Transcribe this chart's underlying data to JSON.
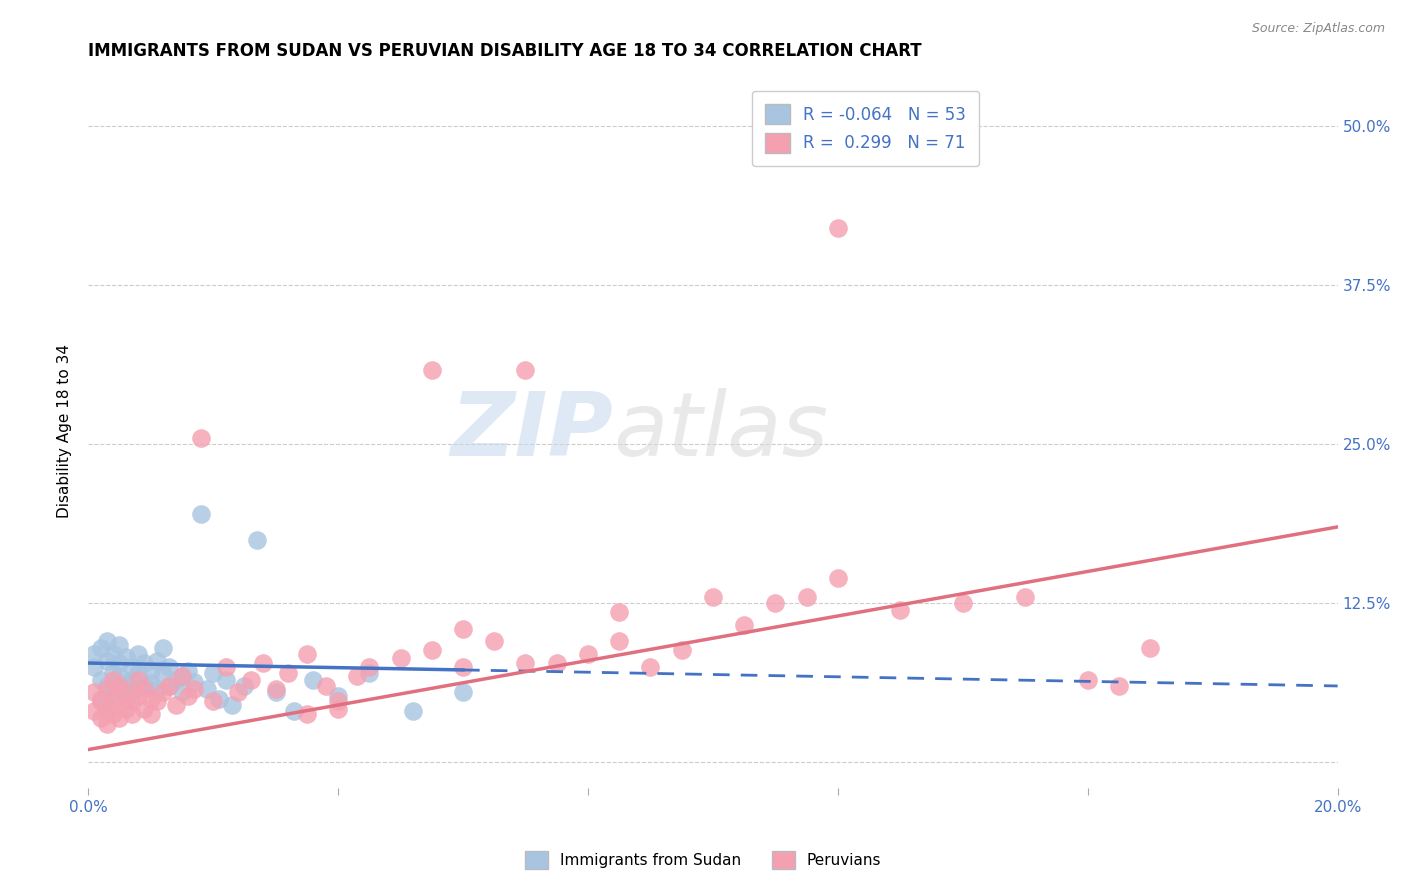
{
  "title": "IMMIGRANTS FROM SUDAN VS PERUVIAN DISABILITY AGE 18 TO 34 CORRELATION CHART",
  "source": "Source: ZipAtlas.com",
  "ylabel": "Disability Age 18 to 34",
  "xlim": [
    0.0,
    0.2
  ],
  "ylim": [
    -0.02,
    0.54
  ],
  "xtick_positions": [
    0.0,
    0.04,
    0.08,
    0.12,
    0.16,
    0.2
  ],
  "xtick_labels": [
    "0.0%",
    "",
    "",
    "",
    "",
    "20.0%"
  ],
  "ytick_positions": [
    0.0,
    0.125,
    0.25,
    0.375,
    0.5
  ],
  "ytick_labels_right": [
    "",
    "12.5%",
    "25.0%",
    "37.5%",
    "50.0%"
  ],
  "sudan_color": "#a8c4e0",
  "peru_color": "#f4a0b0",
  "sudan_line_color": "#4472c4",
  "peru_line_color": "#e07080",
  "background_color": "#ffffff",
  "watermark": "ZIPatlas",
  "legend_label1": "R = -0.064   N = 53",
  "legend_label2": "R =  0.299   N = 71",
  "bottom_legend1": "Immigrants from Sudan",
  "bottom_legend2": "Peruvians",
  "title_fontsize": 12,
  "axis_label_fontsize": 11,
  "tick_fontsize": 11,
  "legend_fontsize": 12,
  "sudan_x_data": [
    0.001,
    0.001,
    0.002,
    0.002,
    0.002,
    0.003,
    0.003,
    0.003,
    0.003,
    0.004,
    0.004,
    0.004,
    0.005,
    0.005,
    0.005,
    0.006,
    0.006,
    0.006,
    0.007,
    0.007,
    0.007,
    0.008,
    0.008,
    0.009,
    0.009,
    0.01,
    0.01,
    0.011,
    0.011,
    0.012,
    0.012,
    0.013,
    0.013,
    0.014,
    0.015,
    0.015,
    0.016,
    0.017,
    0.018,
    0.019,
    0.02,
    0.021,
    0.022,
    0.023,
    0.025,
    0.027,
    0.03,
    0.033,
    0.036,
    0.04,
    0.045,
    0.052,
    0.06
  ],
  "sudan_y_data": [
    0.075,
    0.085,
    0.065,
    0.09,
    0.05,
    0.08,
    0.06,
    0.095,
    0.045,
    0.07,
    0.085,
    0.055,
    0.078,
    0.068,
    0.092,
    0.062,
    0.083,
    0.05,
    0.075,
    0.065,
    0.055,
    0.07,
    0.085,
    0.06,
    0.078,
    0.072,
    0.062,
    0.08,
    0.058,
    0.07,
    0.09,
    0.06,
    0.075,
    0.065,
    0.068,
    0.055,
    0.072,
    0.063,
    0.195,
    0.058,
    0.07,
    0.05,
    0.065,
    0.045,
    0.06,
    0.175,
    0.055,
    0.04,
    0.065,
    0.052,
    0.07,
    0.04,
    0.055
  ],
  "peru_x_data": [
    0.001,
    0.001,
    0.002,
    0.002,
    0.003,
    0.003,
    0.003,
    0.004,
    0.004,
    0.004,
    0.005,
    0.005,
    0.005,
    0.006,
    0.006,
    0.007,
    0.007,
    0.008,
    0.008,
    0.009,
    0.009,
    0.01,
    0.01,
    0.011,
    0.012,
    0.013,
    0.014,
    0.015,
    0.016,
    0.017,
    0.018,
    0.02,
    0.022,
    0.024,
    0.026,
    0.028,
    0.03,
    0.032,
    0.035,
    0.038,
    0.04,
    0.043,
    0.045,
    0.05,
    0.055,
    0.06,
    0.065,
    0.07,
    0.075,
    0.08,
    0.085,
    0.09,
    0.095,
    0.1,
    0.105,
    0.11,
    0.115,
    0.12,
    0.13,
    0.14,
    0.15,
    0.16,
    0.17,
    0.12,
    0.06,
    0.055,
    0.07,
    0.085,
    0.04,
    0.035,
    0.165
  ],
  "peru_y_data": [
    0.04,
    0.055,
    0.035,
    0.048,
    0.042,
    0.058,
    0.03,
    0.05,
    0.065,
    0.038,
    0.045,
    0.06,
    0.035,
    0.055,
    0.042,
    0.048,
    0.038,
    0.052,
    0.065,
    0.042,
    0.058,
    0.05,
    0.038,
    0.048,
    0.055,
    0.06,
    0.045,
    0.068,
    0.052,
    0.058,
    0.255,
    0.048,
    0.075,
    0.055,
    0.065,
    0.078,
    0.058,
    0.07,
    0.085,
    0.06,
    0.048,
    0.068,
    0.075,
    0.082,
    0.308,
    0.075,
    0.095,
    0.308,
    0.078,
    0.085,
    0.095,
    0.075,
    0.088,
    0.13,
    0.108,
    0.125,
    0.13,
    0.145,
    0.12,
    0.125,
    0.13,
    0.065,
    0.09,
    0.42,
    0.105,
    0.088,
    0.078,
    0.118,
    0.042,
    0.038,
    0.06
  ],
  "sudan_line_x": [
    0.0,
    0.06,
    0.06,
    0.2
  ],
  "sudan_line_style": [
    "solid",
    "solid",
    "dashed",
    "dashed"
  ],
  "peru_line_x_start": 0.0,
  "peru_line_x_end": 0.2,
  "sudan_line_y_start": 0.078,
  "sudan_line_y_end": 0.06,
  "peru_line_y_start": 0.01,
  "peru_line_y_end": 0.185
}
